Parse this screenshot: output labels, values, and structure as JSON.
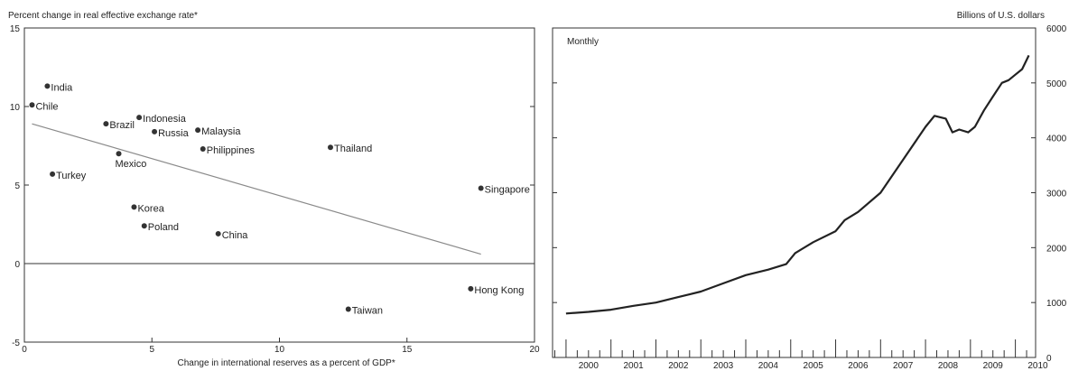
{
  "chart_data": [
    {
      "type": "scatter",
      "title": "",
      "ylabel": "Percent change in real effective exchange rate*",
      "xlabel": "Change in international reserves as a percent of GDP*",
      "xlim": [
        0,
        20
      ],
      "ylim": [
        -5,
        15
      ],
      "xticks": [
        0,
        5,
        10,
        15,
        20
      ],
      "yticks": [
        -5,
        0,
        5,
        10,
        15
      ],
      "grid": false,
      "points": [
        {
          "label": "India",
          "x": 0.9,
          "y": 11.3
        },
        {
          "label": "Chile",
          "x": 0.3,
          "y": 10.1
        },
        {
          "label": "Brazil",
          "x": 3.2,
          "y": 8.9
        },
        {
          "label": "Indonesia",
          "x": 4.5,
          "y": 9.3
        },
        {
          "label": "Russia",
          "x": 5.1,
          "y": 8.4
        },
        {
          "label": "Malaysia",
          "x": 6.8,
          "y": 8.5
        },
        {
          "label": "Philippines",
          "x": 7.0,
          "y": 7.3
        },
        {
          "label": "Mexico",
          "x": 3.7,
          "y": 7.0
        },
        {
          "label": "Thailand",
          "x": 12.0,
          "y": 7.4
        },
        {
          "label": "Turkey",
          "x": 1.1,
          "y": 5.7
        },
        {
          "label": "Singapore",
          "x": 17.9,
          "y": 4.8
        },
        {
          "label": "Korea",
          "x": 4.3,
          "y": 3.6
        },
        {
          "label": "Poland",
          "x": 4.7,
          "y": 2.4
        },
        {
          "label": "China",
          "x": 7.6,
          "y": 1.9
        },
        {
          "label": "Hong Kong",
          "x": 17.5,
          "y": -1.6
        },
        {
          "label": "Taiwan",
          "x": 12.7,
          "y": -2.9
        }
      ],
      "trendline": {
        "x": [
          0.3,
          17.9
        ],
        "y": [
          8.9,
          0.6
        ]
      },
      "zero_line": true
    },
    {
      "type": "line",
      "title": "",
      "ylabel": "Billions of U.S. dollars",
      "annotation": "Monthly",
      "xlim": [
        1999.7,
        2010.45
      ],
      "ylim": [
        0,
        6000
      ],
      "yticks": [
        0,
        1000,
        2000,
        3000,
        4000,
        5000,
        6000
      ],
      "xtick_labels": [
        "2000",
        "2001",
        "2002",
        "2003",
        "2004",
        "2005",
        "2006",
        "2007",
        "2008",
        "2009",
        "2010"
      ],
      "y_axis_side": "right",
      "grid": false,
      "series": [
        {
          "x": [
            2000.0,
            2000.5,
            2001.0,
            2001.5,
            2002.0,
            2002.5,
            2003.0,
            2003.5,
            2004.0,
            2004.5,
            2004.9,
            2005.1,
            2005.5,
            2006.0,
            2006.2,
            2006.5,
            2007.0,
            2007.5,
            2008.0,
            2008.2,
            2008.45,
            2008.6,
            2008.75,
            2008.95,
            2009.1,
            2009.3,
            2009.5,
            2009.7,
            2009.85,
            2010.0,
            2010.15,
            2010.3
          ],
          "values": [
            800,
            830,
            870,
            940,
            1000,
            1100,
            1200,
            1350,
            1500,
            1600,
            1700,
            1900,
            2100,
            2300,
            2500,
            2650,
            3000,
            3600,
            4200,
            4400,
            4350,
            4100,
            4150,
            4100,
            4200,
            4500,
            4750,
            5000,
            5050,
            5150,
            5250,
            5500
          ]
        }
      ]
    }
  ]
}
